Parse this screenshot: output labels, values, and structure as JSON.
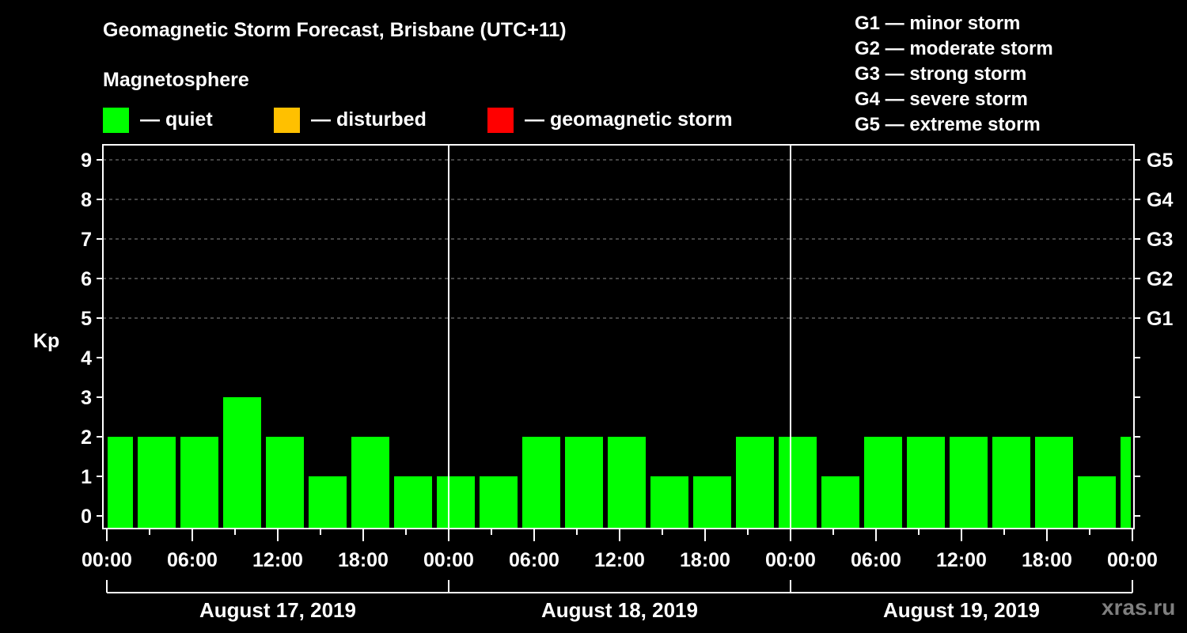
{
  "header": {
    "title": "Geomagnetic Storm Forecast, Brisbane (UTC+11)",
    "subtitle": "Magnetosphere"
  },
  "legend": [
    {
      "label": "— quiet",
      "color": "#00FF00"
    },
    {
      "label": "— disturbed",
      "color": "#FFC000"
    },
    {
      "label": "— geomagnetic storm",
      "color": "#FF0000"
    }
  ],
  "g_scale": [
    "G1 — minor storm",
    "G2 — moderate storm",
    "G3 — strong storm",
    "G4 — severe storm",
    "G5 — extreme storm"
  ],
  "watermark": "xras.ru",
  "chart_data": {
    "type": "bar",
    "title": "Geomagnetic Storm Forecast, Brisbane (UTC+11)",
    "ylabel": "Kp",
    "xlabel": "",
    "ylim": [
      0,
      9
    ],
    "yticks": [
      0,
      1,
      2,
      3,
      4,
      5,
      6,
      7,
      8,
      9
    ],
    "right_axis_labels": [
      {
        "kp": 5,
        "label": "G1"
      },
      {
        "kp": 6,
        "label": "G2"
      },
      {
        "kp": 7,
        "label": "G3"
      },
      {
        "kp": 8,
        "label": "G4"
      },
      {
        "kp": 9,
        "label": "G5"
      }
    ],
    "grid": {
      "horizontal_dashed_at": [
        5,
        6,
        7,
        8,
        9
      ]
    },
    "xtick_labels": [
      "00:00",
      "06:00",
      "12:00",
      "18:00",
      "00:00",
      "06:00",
      "12:00",
      "18:00",
      "00:00",
      "06:00",
      "12:00",
      "18:00",
      "00:00"
    ],
    "days": [
      "August 17, 2019",
      "August 18, 2019",
      "August 19, 2019"
    ],
    "bar_interval_hours": 3,
    "first_bar_start_hour": -1,
    "bars": [
      {
        "start": "Aug 16 23:00",
        "end": "Aug 17 02:00",
        "kp": 2
      },
      {
        "start": "Aug 17 02:00",
        "end": "Aug 17 05:00",
        "kp": 2
      },
      {
        "start": "Aug 17 05:00",
        "end": "Aug 17 08:00",
        "kp": 2
      },
      {
        "start": "Aug 17 08:00",
        "end": "Aug 17 11:00",
        "kp": 3
      },
      {
        "start": "Aug 17 11:00",
        "end": "Aug 17 14:00",
        "kp": 2
      },
      {
        "start": "Aug 17 14:00",
        "end": "Aug 17 17:00",
        "kp": 1
      },
      {
        "start": "Aug 17 17:00",
        "end": "Aug 17 20:00",
        "kp": 2
      },
      {
        "start": "Aug 17 20:00",
        "end": "Aug 17 23:00",
        "kp": 1
      },
      {
        "start": "Aug 17 23:00",
        "end": "Aug 18 02:00",
        "kp": 1
      },
      {
        "start": "Aug 18 02:00",
        "end": "Aug 18 05:00",
        "kp": 1
      },
      {
        "start": "Aug 18 05:00",
        "end": "Aug 18 08:00",
        "kp": 2
      },
      {
        "start": "Aug 18 08:00",
        "end": "Aug 18 11:00",
        "kp": 2
      },
      {
        "start": "Aug 18 11:00",
        "end": "Aug 18 14:00",
        "kp": 2
      },
      {
        "start": "Aug 18 14:00",
        "end": "Aug 18 17:00",
        "kp": 1
      },
      {
        "start": "Aug 18 17:00",
        "end": "Aug 18 20:00",
        "kp": 1
      },
      {
        "start": "Aug 18 20:00",
        "end": "Aug 18 23:00",
        "kp": 2
      },
      {
        "start": "Aug 18 23:00",
        "end": "Aug 19 02:00",
        "kp": 2
      },
      {
        "start": "Aug 19 02:00",
        "end": "Aug 19 05:00",
        "kp": 1
      },
      {
        "start": "Aug 19 05:00",
        "end": "Aug 19 08:00",
        "kp": 2
      },
      {
        "start": "Aug 19 08:00",
        "end": "Aug 19 11:00",
        "kp": 2
      },
      {
        "start": "Aug 19 11:00",
        "end": "Aug 19 14:00",
        "kp": 2
      },
      {
        "start": "Aug 19 14:00",
        "end": "Aug 19 17:00",
        "kp": 2
      },
      {
        "start": "Aug 19 17:00",
        "end": "Aug 19 20:00",
        "kp": 2
      },
      {
        "start": "Aug 19 20:00",
        "end": "Aug 19 23:00",
        "kp": 1
      },
      {
        "start": "Aug 19 23:00",
        "end": "Aug 20 02:00",
        "kp": 2
      }
    ],
    "values": [
      2,
      2,
      2,
      3,
      2,
      1,
      2,
      1,
      1,
      1,
      2,
      2,
      2,
      1,
      1,
      2,
      2,
      1,
      2,
      2,
      2,
      2,
      2,
      1,
      2
    ],
    "colors": {
      "quiet": "#00FF00",
      "disturbed": "#FFC000",
      "storm": "#FF0000"
    }
  }
}
